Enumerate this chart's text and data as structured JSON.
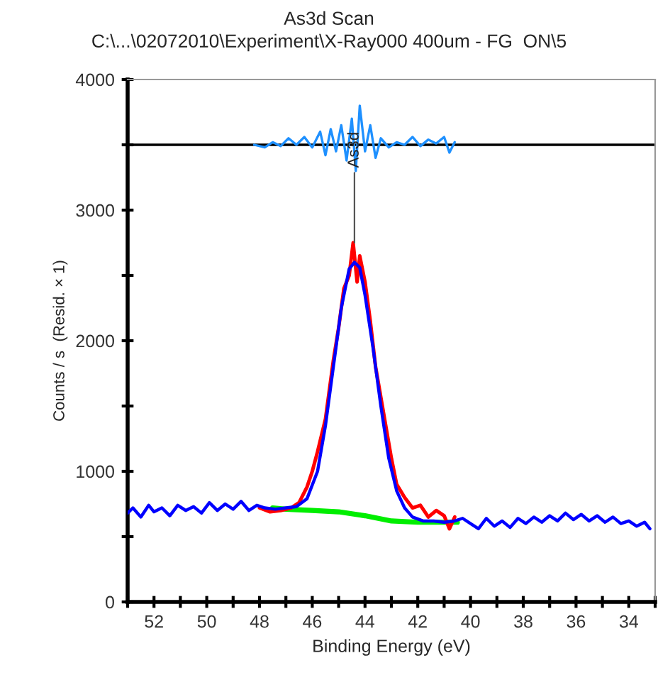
{
  "chart_data": {
    "type": "line",
    "title": "As3d Scan",
    "subtitle": "C:\\...\\02072010\\Experiment\\X-Ray000 400um - FG  ON\\5",
    "xlabel": "Binding Energy (eV)",
    "ylabel": "Counts / s  (Resid. × 1)",
    "xlim": [
      53,
      33
    ],
    "ylim": [
      0,
      4000
    ],
    "xticks": [
      {
        "value": 53,
        "label": null
      },
      52,
      {
        "value": 51,
        "label": null
      },
      50,
      {
        "value": 49,
        "label": null
      },
      48,
      {
        "value": 47,
        "label": null
      },
      46,
      {
        "value": 45,
        "label": null
      },
      44,
      {
        "value": 43,
        "label": null
      },
      42,
      {
        "value": 41,
        "label": null
      },
      40,
      {
        "value": 39,
        "label": null
      },
      38,
      {
        "value": 37,
        "label": null
      },
      36,
      {
        "value": 35,
        "label": null
      },
      34,
      {
        "value": 33,
        "label": null
      }
    ],
    "yticks": [
      0,
      {
        "value": 500,
        "label": null
      },
      1000,
      {
        "value": 1500,
        "label": null
      },
      2000,
      {
        "value": 2500,
        "label": null
      },
      3000,
      {
        "value": 3500,
        "label": null
      },
      4000
    ],
    "grid": false,
    "legend": false,
    "marker": "none",
    "line_style": "solid",
    "ref_lines": [
      {
        "axis": "y",
        "value": 3500,
        "label": null,
        "color": "#000000"
      }
    ],
    "annotations": [
      {
        "text": "As3d",
        "x": 44.4,
        "y": 2750
      }
    ],
    "series": [
      {
        "color": "#0000ff",
        "x": [
          53,
          52.8,
          52.5,
          52.2,
          52,
          51.7,
          51.4,
          51.1,
          50.8,
          50.5,
          50.2,
          49.9,
          49.6,
          49.3,
          49,
          48.7,
          48.4,
          48.1,
          47.8,
          47.4,
          47,
          46.6,
          46.2,
          45.8,
          45.5,
          45.2,
          44.9,
          44.6,
          44.4,
          44.2,
          44,
          43.7,
          43.4,
          43.1,
          42.8,
          42.5,
          42.2,
          41.8,
          41.4,
          41,
          40.6,
          40.3,
          40,
          39.7,
          39.4,
          39.1,
          38.8,
          38.5,
          38.2,
          37.9,
          37.6,
          37.3,
          37,
          36.7,
          36.4,
          36.1,
          35.8,
          35.5,
          35.2,
          34.9,
          34.6,
          34.3,
          34,
          33.7,
          33.4,
          33.2
        ],
        "values": [
          680,
          720,
          650,
          740,
          690,
          720,
          660,
          740,
          700,
          730,
          680,
          760,
          700,
          750,
          710,
          770,
          700,
          740,
          720,
          710,
          720,
          730,
          790,
          1000,
          1350,
          1800,
          2250,
          2550,
          2600,
          2560,
          2350,
          1950,
          1500,
          1100,
          850,
          720,
          650,
          620,
          620,
          610,
          620,
          640,
          600,
          560,
          640,
          580,
          620,
          570,
          640,
          600,
          650,
          610,
          660,
          620,
          680,
          630,
          670,
          620,
          660,
          610,
          650,
          600,
          620,
          580,
          610,
          560
        ]
      },
      {
        "color": "#ff0000",
        "x": [
          48,
          47.6,
          47.2,
          46.8,
          46.5,
          46.2,
          46,
          45.8,
          45.5,
          45.2,
          45,
          44.8,
          44.6,
          44.45,
          44.3,
          44.2,
          44,
          43.8,
          43.6,
          43.3,
          43,
          42.8,
          42.5,
          42.2,
          41.9,
          41.6,
          41.3,
          41,
          40.8,
          40.6
        ],
        "values": [
          720,
          690,
          700,
          720,
          760,
          880,
          1000,
          1150,
          1400,
          1850,
          2100,
          2400,
          2500,
          2750,
          2450,
          2650,
          2450,
          2150,
          1800,
          1450,
          1100,
          900,
          800,
          720,
          740,
          650,
          700,
          660,
          560,
          650
        ]
      },
      {
        "color": "#00ee00",
        "x": [
          47.5,
          47,
          46,
          45,
          44,
          43,
          42,
          41,
          40.5
        ],
        "values": [
          720,
          710,
          700,
          690,
          660,
          620,
          610,
          610,
          610
        ]
      },
      {
        "color": "#1e90ff",
        "x": [
          48.2,
          47.8,
          47.5,
          47.2,
          46.9,
          46.6,
          46.3,
          46,
          45.7,
          45.5,
          45.3,
          45.1,
          44.9,
          44.7,
          44.5,
          44.35,
          44.2,
          44,
          43.8,
          43.6,
          43.4,
          43.1,
          42.8,
          42.5,
          42.2,
          41.9,
          41.6,
          41.3,
          41,
          40.8,
          40.6
        ],
        "values": [
          3500,
          3480,
          3520,
          3490,
          3550,
          3500,
          3560,
          3480,
          3600,
          3420,
          3620,
          3450,
          3650,
          3380,
          3700,
          3300,
          3800,
          3450,
          3650,
          3400,
          3550,
          3480,
          3520,
          3500,
          3560,
          3490,
          3540,
          3510,
          3560,
          3440,
          3520
        ]
      }
    ]
  }
}
